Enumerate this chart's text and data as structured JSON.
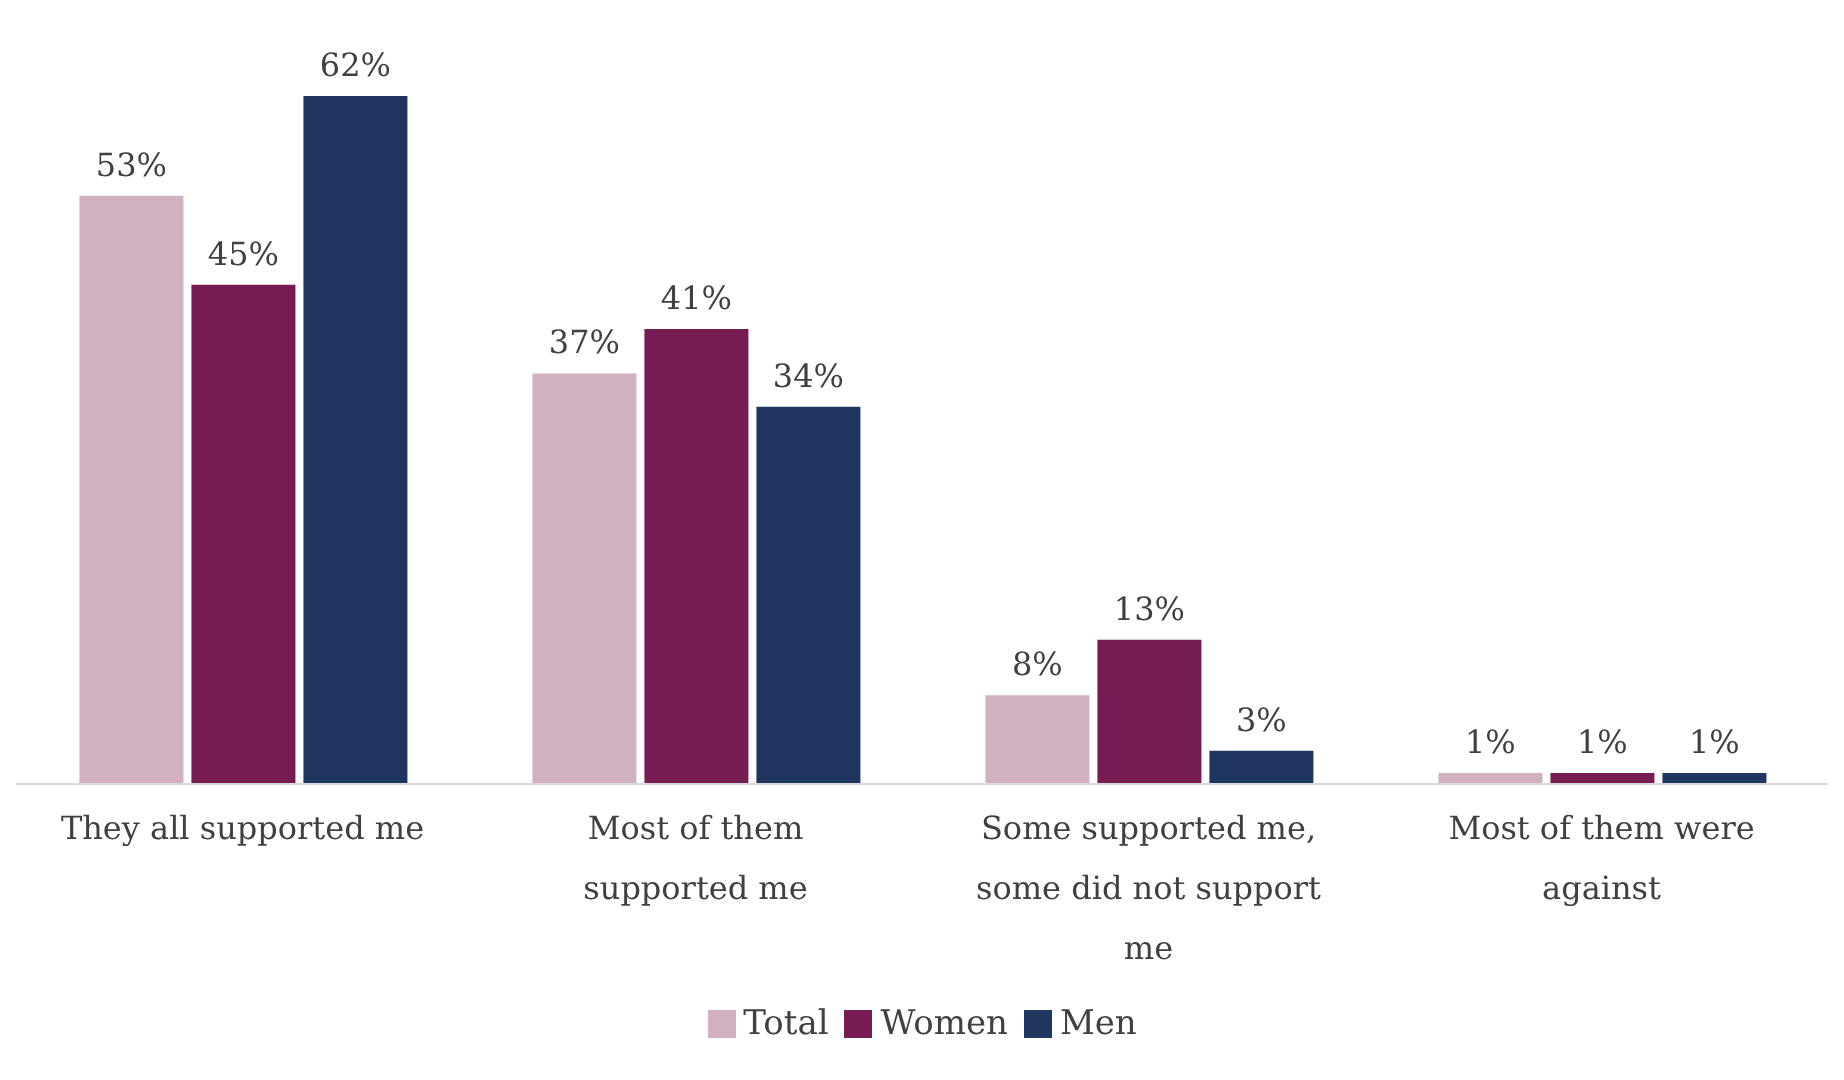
{
  "chart_data": {
    "type": "bar",
    "categories": [
      "They all supported me",
      "Most of them supported me",
      "Some supported me, some did not support me",
      "Most of them were against"
    ],
    "series": [
      {
        "name": "Total",
        "color": "#d1b1c1",
        "values": [
          53,
          37,
          8,
          1
        ],
        "value_labels": [
          "53%",
          "37%",
          "8%",
          "1%"
        ]
      },
      {
        "name": "Women",
        "color": "#761c53",
        "values": [
          45,
          41,
          13,
          1
        ],
        "value_labels": [
          "45%",
          "41%",
          "13%",
          "1%"
        ]
      },
      {
        "name": "Men",
        "color": "#1f3660",
        "values": [
          62,
          34,
          3,
          1
        ],
        "value_labels": [
          "62%",
          "34%",
          "3%",
          "1%"
        ]
      }
    ],
    "legend": "bottom"
  }
}
